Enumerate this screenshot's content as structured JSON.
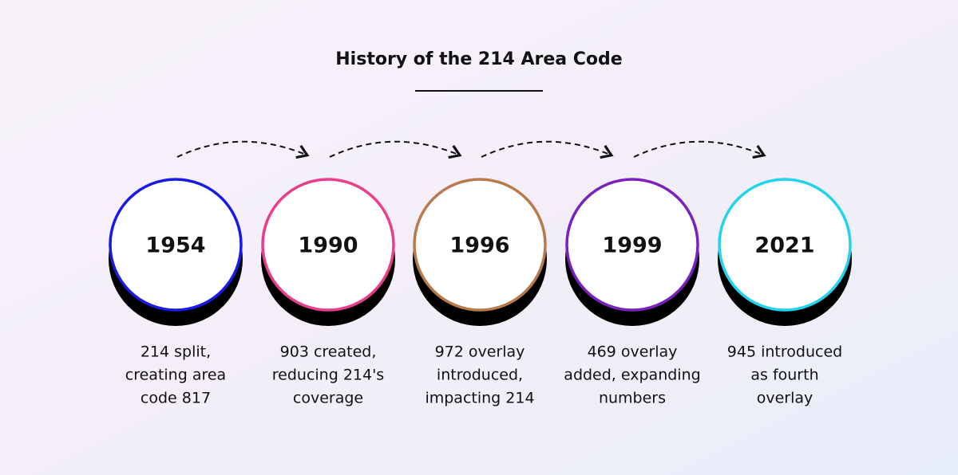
{
  "title": "History of the 214 Area Code",
  "events": [
    {
      "year": "1954",
      "description": [
        "214 split,",
        "creating area",
        "code 817"
      ],
      "color": "#1a1ae6"
    },
    {
      "year": "1990",
      "description": [
        "903 created,",
        "reducing 214's",
        "coverage"
      ],
      "color": "#e83e8c"
    },
    {
      "year": "1996",
      "description": [
        "972 overlay",
        "introduced,",
        "impacting 214"
      ],
      "color": "#b87a4b"
    },
    {
      "year": "1999",
      "description": [
        "469 overlay",
        "added, expanding",
        "numbers"
      ],
      "color": "#7a22c0"
    },
    {
      "year": "2021",
      "description": [
        "945 introduced",
        "as fourth",
        "overlay"
      ],
      "color": "#22d3ee"
    }
  ]
}
